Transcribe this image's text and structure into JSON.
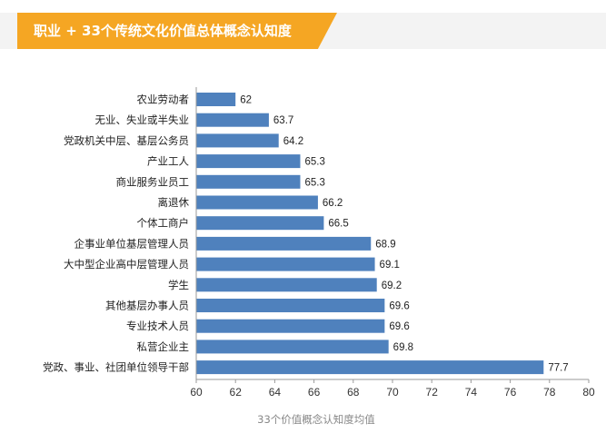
{
  "header": {
    "title": "职业 + 33个传统文化价值总体概念认知度"
  },
  "chart_data": {
    "type": "bar",
    "orientation": "horizontal",
    "categories": [
      "农业劳动者",
      "无业、失业或半失业",
      "党政机关中层、基层公务员",
      "产业工人",
      "商业服务业员工",
      "离退休",
      "个体工商户",
      "企事业单位基层管理人员",
      "大中型企业高中层管理人员",
      "学生",
      "其他基层办事人员",
      "专业技术人员",
      "私营企业主",
      "党政、事业、社团单位领导干部"
    ],
    "values": [
      62,
      63.7,
      64.2,
      65.3,
      65.3,
      66.2,
      66.5,
      68.9,
      69.1,
      69.2,
      69.6,
      69.6,
      69.8,
      77.7
    ],
    "value_labels": [
      "62",
      "63.7",
      "64.2",
      "65.3",
      "65.3",
      "66.2",
      "66.5",
      "68.9",
      "69.1",
      "69.2",
      "69.6",
      "69.6",
      "69.8",
      "77.7"
    ],
    "xlabel": "33个价值概念认知度均值",
    "ylabel": "",
    "xlim": [
      60,
      80
    ],
    "x_ticks": [
      "60",
      "62",
      "64",
      "66",
      "68",
      "70",
      "72",
      "74",
      "76",
      "78",
      "80"
    ],
    "grid": false,
    "legend": "none",
    "bar_color": "#4f81bd",
    "accent_color": "#f5a623"
  }
}
